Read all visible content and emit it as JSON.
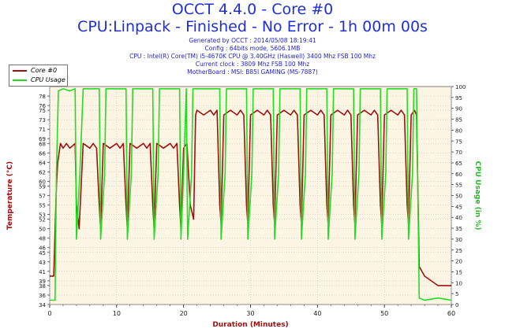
{
  "header": {
    "title": "OCCT 4.4.0 - Core #0",
    "subtitle": "CPU:Linpack - Finished - No Error - 1h 00m 00s",
    "info": [
      "Generated by OCCT : 2014/05/08 18:19:41",
      "Config : 64bits mode, 5606.1MB",
      "CPU : Intel(R) Core(TM) i5-4670K CPU @ 3.40GHz (Haswell) 3400 Mhz FSB 100 Mhz",
      "Current clock : 3809 Mhz FSB 100 Mhz",
      "MotherBoard : MSI: B85I GAMING (MS-7887)"
    ]
  },
  "legend": {
    "items": [
      {
        "label": "Core #0",
        "color": "#a01010"
      },
      {
        "label": "CPU Usage",
        "color": "#22dd22"
      }
    ]
  },
  "chart_data": {
    "type": "line",
    "xlabel": "Duration (Minutes)",
    "ylabel_left": "Temperature (°C)",
    "ylabel_right": "CPU Usage (in %)",
    "xlim": [
      0,
      60
    ],
    "ylim_left": [
      34,
      80
    ],
    "ylim_right": [
      0,
      100
    ],
    "x_ticks": [
      0,
      10,
      20,
      30,
      40,
      50,
      60
    ],
    "y_ticks_left": [
      34,
      36,
      38,
      39,
      41,
      43,
      45,
      46,
      48,
      50,
      52,
      53,
      55,
      57,
      59,
      60,
      62,
      64,
      66,
      68,
      69,
      71,
      73,
      75,
      76,
      78
    ],
    "y_ticks_right": [
      0,
      5,
      10,
      15,
      20,
      25,
      30,
      35,
      40,
      45,
      50,
      55,
      60,
      65,
      70,
      75,
      80,
      85,
      90,
      95,
      100
    ],
    "grid": true,
    "colors": {
      "temperature": "#a01010",
      "cpu_usage": "#22dd22",
      "plot_bg": "#fdf5e4",
      "grid": "#c8c8c8",
      "axis_label": "#a01010",
      "right_axis_label": "#22bb22"
    },
    "series": [
      {
        "name": "Core #0",
        "axis": "left",
        "x": [
          0,
          0.6,
          1.0,
          1.2,
          1.6,
          2.0,
          2.5,
          3.0,
          3.8,
          4.0,
          4.4,
          5.0,
          6.0,
          6.5,
          7.0,
          7.4,
          7.6,
          8.0,
          9.0,
          10.0,
          10.5,
          11.0,
          11.4,
          11.6,
          12.0,
          13.0,
          14.0,
          14.5,
          15.0,
          15.4,
          15.6,
          16.0,
          17.0,
          18.0,
          18.5,
          19.0,
          19.4,
          19.6,
          20.0,
          20.5,
          21.0,
          21.5,
          21.8,
          22.0,
          23.0,
          24.0,
          24.5,
          25.0,
          25.4,
          25.6,
          26.0,
          27.0,
          28.0,
          28.5,
          29.0,
          29.4,
          29.6,
          30.0,
          31.0,
          32.0,
          32.5,
          33.0,
          33.4,
          33.6,
          34.0,
          35.0,
          36.0,
          36.5,
          37.0,
          37.4,
          37.6,
          38.0,
          39.0,
          40.0,
          40.5,
          41.0,
          41.4,
          41.6,
          42.0,
          43.0,
          44.0,
          44.5,
          45.0,
          45.4,
          45.6,
          46.0,
          47.0,
          48.0,
          48.5,
          49.0,
          49.4,
          49.6,
          50.0,
          51.0,
          52.0,
          52.5,
          53.0,
          53.4,
          53.6,
          54.0,
          54.5,
          54.8,
          55.2,
          56.0,
          57.0,
          58.0,
          59.0,
          60.0
        ],
        "values": [
          40,
          40,
          59,
          64,
          68,
          67,
          68,
          67,
          68,
          55,
          50,
          68,
          67,
          68,
          67,
          55,
          50,
          68,
          67,
          68,
          67,
          68,
          55,
          50,
          68,
          67,
          68,
          67,
          68,
          55,
          50,
          68,
          67,
          68,
          67,
          68,
          55,
          50,
          67,
          68,
          55,
          52,
          74,
          75,
          74,
          75,
          74,
          75,
          55,
          51,
          74,
          75,
          74,
          75,
          74,
          55,
          51,
          74,
          75,
          74,
          75,
          74,
          55,
          51,
          74,
          75,
          74,
          75,
          74,
          55,
          51,
          74,
          75,
          74,
          75,
          74,
          55,
          51,
          74,
          75,
          74,
          75,
          74,
          55,
          51,
          74,
          75,
          74,
          75,
          74,
          55,
          51,
          74,
          75,
          74,
          75,
          74,
          55,
          51,
          74,
          75,
          74,
          42,
          40,
          39,
          38,
          38,
          38
        ]
      },
      {
        "name": "CPU Usage",
        "axis": "right",
        "x": [
          0,
          0.8,
          1.0,
          1.3,
          2.0,
          3.0,
          3.8,
          4.0,
          4.5,
          5.0,
          7.4,
          7.6,
          8.2,
          8.4,
          11.4,
          11.6,
          12.2,
          12.4,
          15.4,
          15.6,
          16.2,
          16.4,
          19.4,
          19.6,
          20.0,
          20.4,
          20.6,
          21.2,
          21.4,
          25.4,
          25.6,
          26.2,
          26.4,
          29.4,
          29.6,
          30.2,
          30.4,
          33.4,
          33.6,
          34.2,
          34.4,
          37.4,
          37.6,
          38.2,
          38.4,
          41.4,
          41.6,
          42.2,
          42.4,
          45.4,
          45.6,
          46.2,
          46.4,
          49.4,
          49.6,
          50.2,
          50.4,
          53.4,
          53.6,
          54.2,
          54.4,
          54.8,
          55.2,
          56.0,
          58.0,
          60.0
        ],
        "values": [
          2,
          2,
          60,
          98,
          99,
          98,
          99,
          30,
          60,
          99,
          99,
          30,
          60,
          99,
          99,
          30,
          60,
          99,
          99,
          30,
          60,
          99,
          99,
          30,
          60,
          99,
          30,
          60,
          99,
          99,
          30,
          60,
          99,
          99,
          30,
          60,
          99,
          99,
          30,
          60,
          99,
          99,
          30,
          60,
          99,
          99,
          30,
          60,
          99,
          99,
          30,
          60,
          99,
          99,
          30,
          60,
          99,
          99,
          30,
          60,
          99,
          99,
          3,
          2,
          3,
          2
        ]
      }
    ]
  }
}
